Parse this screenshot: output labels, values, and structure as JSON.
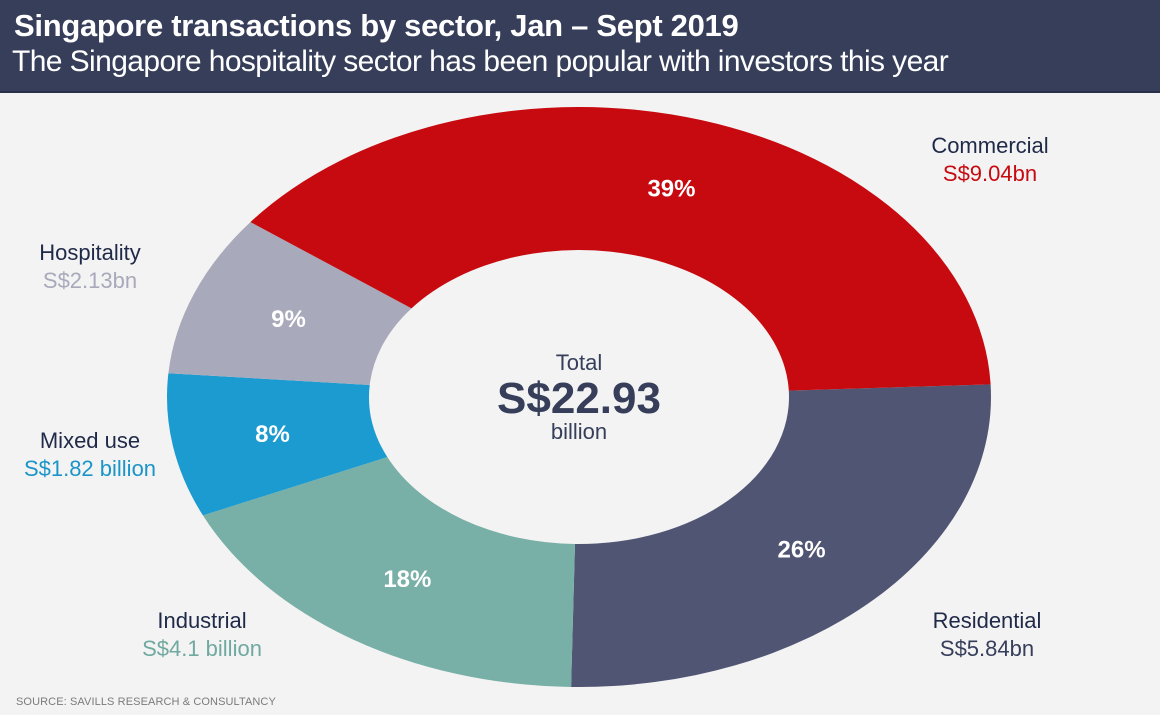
{
  "header": {
    "title": "Singapore transactions by sector, Jan – Sept 2019",
    "subtitle": "The Singapore hospitality sector has been popular with investors this year"
  },
  "source": "SOURCE: SAVILLS RESEARCH & CONSULTANCY",
  "chart_data": {
    "type": "pie",
    "variant": "donut",
    "title": "Singapore transactions by sector, Jan – Sept 2019",
    "subtitle": "The Singapore hospitality sector has been popular with investors this year",
    "center_label": {
      "top": "Total",
      "value": "S$22.93",
      "bottom": "billion"
    },
    "total": 22.93,
    "unit": "S$ billion",
    "slices": [
      {
        "name": "Residential",
        "value": 5.84,
        "percent": 26,
        "percent_label": "26%",
        "value_label": "S$5.84bn",
        "color": "#515574",
        "label_color": "#363e5a"
      },
      {
        "name": "Industrial",
        "value": 4.1,
        "percent": 18,
        "percent_label": "18%",
        "value_label": "S$4.1 billion",
        "color": "#78afa6",
        "label_color": "#6fa99f"
      },
      {
        "name": "Mixed use",
        "value": 1.82,
        "percent": 8,
        "percent_label": "8%",
        "value_label": "S$1.82 billion",
        "color": "#1b9bd0",
        "label_color": "#1b95c9"
      },
      {
        "name": "Hospitality",
        "value": 2.13,
        "percent": 9,
        "percent_label": "9%",
        "value_label": "S$2.13bn",
        "color": "#a8a9ba",
        "label_color": "#a8a9ba"
      },
      {
        "name": "Commercial",
        "value": 9.04,
        "percent": 39,
        "percent_label": "39%",
        "value_label": "S$9.04bn",
        "color": "#c70a10",
        "label_color": "#c70a10"
      }
    ],
    "legend": "outside-labels"
  }
}
